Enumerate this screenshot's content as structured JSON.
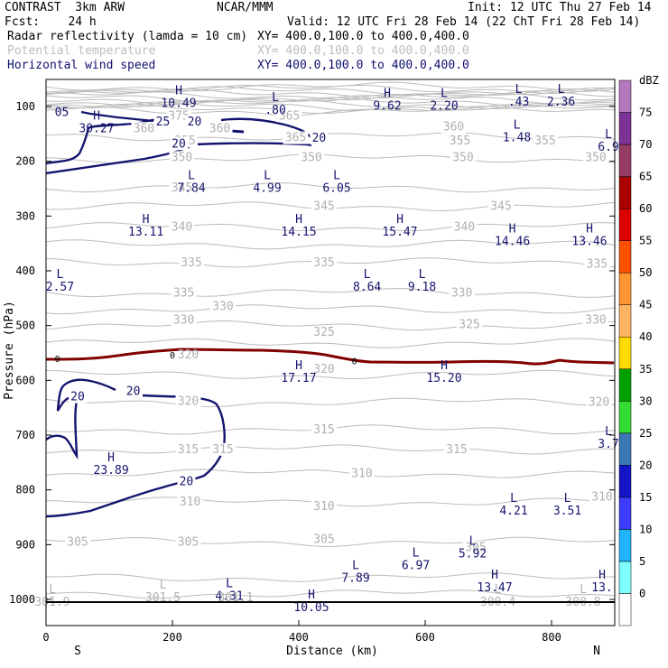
{
  "header": {
    "model": "CONTRAST  3km ARW",
    "center": "NCAR/MMM",
    "init": "Init: 12 UTC Thu 27 Feb 14",
    "fcst": "Fcst:    24 h",
    "valid": "Valid: 12 UTC Fri 28 Feb 14 (22 ChT Fri 28 Feb 14)",
    "fields": [
      {
        "name": "Radar reflectivity (lamda = 10 cm)",
        "xy": "XY= 400.0,100.0 to 400.0,400.0",
        "color": "#000000"
      },
      {
        "name": "Potential temperature",
        "xy": "XY= 400.0,100.0 to 400.0,400.0",
        "color": "#bdbdbd"
      },
      {
        "name": "Horizontal wind speed",
        "xy": "XY= 400.0,100.0 to 400.0,400.0",
        "color": "#101070"
      }
    ]
  },
  "chart_data": {
    "type": "cross-section contour",
    "xlabel": "Distance (km)",
    "ylabel": "Pressure (hPa)",
    "xlim": [
      0,
      900
    ],
    "ylim": [
      1000,
      60
    ],
    "xticks": [
      0,
      200,
      400,
      600,
      800
    ],
    "yticks": [
      100,
      200,
      300,
      400,
      500,
      600,
      700,
      800,
      900,
      1000
    ],
    "x_end_labels": {
      "left": "S",
      "right": "N"
    },
    "colorbar": {
      "units": "dBZ",
      "levels": [
        "0",
        "5",
        "10",
        "15",
        "20",
        "25",
        "30",
        "35",
        "40",
        "45",
        "50",
        "55",
        "60",
        "65",
        "70",
        "75"
      ],
      "colors": [
        "#ffffff",
        "#7fffff",
        "#1eb4ff",
        "#3c3cff",
        "#1414c8",
        "#3c78b4",
        "#32dc32",
        "#00a000",
        "#ffdc00",
        "#ffb464",
        "#ff9632",
        "#ff5000",
        "#dc0000",
        "#aa0000",
        "#963c64",
        "#7d3296",
        "#b478be"
      ]
    },
    "theta_labels": [
      {
        "x": 210,
        "p": 117,
        "v": "375"
      },
      {
        "x": 385,
        "p": 117,
        "v": "365"
      },
      {
        "x": 645,
        "p": 137,
        "v": "360"
      },
      {
        "x": 155,
        "p": 140,
        "v": "360"
      },
      {
        "x": 275,
        "p": 140,
        "v": "360"
      },
      {
        "x": 790,
        "p": 163,
        "v": "355"
      },
      {
        "x": 220,
        "p": 163,
        "v": "355"
      },
      {
        "x": 395,
        "p": 157,
        "v": "365"
      },
      {
        "x": 655,
        "p": 163,
        "v": "355"
      },
      {
        "x": 215,
        "p": 193,
        "v": "350"
      },
      {
        "x": 420,
        "p": 193,
        "v": "350"
      },
      {
        "x": 660,
        "p": 193,
        "v": "350"
      },
      {
        "x": 870,
        "p": 193,
        "v": "350"
      },
      {
        "x": 215,
        "p": 248,
        "v": "345"
      },
      {
        "x": 440,
        "p": 282,
        "v": "345"
      },
      {
        "x": 720,
        "p": 282,
        "v": "345"
      },
      {
        "x": 215,
        "p": 320,
        "v": "340"
      },
      {
        "x": 662,
        "p": 320,
        "v": "340"
      },
      {
        "x": 230,
        "p": 385,
        "v": "335"
      },
      {
        "x": 440,
        "p": 385,
        "v": "335"
      },
      {
        "x": 872,
        "p": 388,
        "v": "335"
      },
      {
        "x": 218,
        "p": 440,
        "v": "335"
      },
      {
        "x": 658,
        "p": 440,
        "v": "330"
      },
      {
        "x": 218,
        "p": 490,
        "v": "330"
      },
      {
        "x": 280,
        "p": 465,
        "v": "330"
      },
      {
        "x": 670,
        "p": 498,
        "v": "325"
      },
      {
        "x": 440,
        "p": 512,
        "v": "325"
      },
      {
        "x": 870,
        "p": 490,
        "v": "330"
      },
      {
        "x": 440,
        "p": 580,
        "v": "320"
      },
      {
        "x": 225,
        "p": 638,
        "v": "320"
      },
      {
        "x": 875,
        "p": 640,
        "v": "320"
      },
      {
        "x": 440,
        "p": 690,
        "v": "315"
      },
      {
        "x": 225,
        "p": 726,
        "v": "315"
      },
      {
        "x": 280,
        "p": 726,
        "v": "315"
      },
      {
        "x": 650,
        "p": 726,
        "v": "315"
      },
      {
        "x": 500,
        "p": 770,
        "v": "310"
      },
      {
        "x": 228,
        "p": 822,
        "v": "310"
      },
      {
        "x": 440,
        "p": 830,
        "v": "310"
      },
      {
        "x": 880,
        "p": 813,
        "v": "310"
      },
      {
        "x": 50,
        "p": 895,
        "v": "305"
      },
      {
        "x": 225,
        "p": 895,
        "v": "305"
      },
      {
        "x": 440,
        "p": 890,
        "v": "305"
      },
      {
        "x": 680,
        "p": 905,
        "v": "305"
      }
    ],
    "hl_markers": [
      {
        "x": 210,
        "p": 78,
        "t": "H",
        "v": "10.49"
      },
      {
        "x": 363,
        "p": 90,
        "t": "L",
        "v": ".80"
      },
      {
        "x": 540,
        "p": 83,
        "t": "H",
        "v": "9.62"
      },
      {
        "x": 630,
        "p": 83,
        "t": "L",
        "v": "2.20"
      },
      {
        "x": 748,
        "p": 75,
        "t": "L",
        "v": ".43"
      },
      {
        "x": 815,
        "p": 75,
        "t": "L",
        "v": "2.36"
      },
      {
        "x": 25,
        "p": 94,
        "t": "",
        "v": "05"
      },
      {
        "x": 80,
        "p": 124,
        "t": "H",
        "v": "30.27"
      },
      {
        "x": 745,
        "p": 140,
        "t": "L",
        "v": "1.48"
      },
      {
        "x": 890,
        "p": 158,
        "t": "L",
        "v": "6.9"
      },
      {
        "x": 230,
        "p": 233,
        "t": "L",
        "v": "7.84"
      },
      {
        "x": 350,
        "p": 233,
        "t": "L",
        "v": "4.99"
      },
      {
        "x": 460,
        "p": 233,
        "t": "L",
        "v": "6.05"
      },
      {
        "x": 158,
        "p": 313,
        "t": "H",
        "v": "13.11"
      },
      {
        "x": 400,
        "p": 313,
        "t": "H",
        "v": "14.15"
      },
      {
        "x": 560,
        "p": 313,
        "t": "H",
        "v": "15.47"
      },
      {
        "x": 738,
        "p": 330,
        "t": "H",
        "v": "14.46"
      },
      {
        "x": 860,
        "p": 330,
        "t": "H",
        "v": "13.46"
      },
      {
        "x": 22,
        "p": 413,
        "t": "L",
        "v": "2.57"
      },
      {
        "x": 508,
        "p": 413,
        "t": "L",
        "v": "8.64"
      },
      {
        "x": 595,
        "p": 413,
        "t": "L",
        "v": "9.18"
      },
      {
        "x": 400,
        "p": 580,
        "t": "H",
        "v": "17.17"
      },
      {
        "x": 630,
        "p": 580,
        "t": "H",
        "v": "15.20"
      },
      {
        "x": 890,
        "p": 700,
        "t": "L",
        "v": "3.7"
      },
      {
        "x": 103,
        "p": 748,
        "t": "H",
        "v": "23.89"
      },
      {
        "x": 740,
        "p": 822,
        "t": "L",
        "v": "4.21"
      },
      {
        "x": 825,
        "p": 822,
        "t": "L",
        "v": "3.51"
      },
      {
        "x": 675,
        "p": 900,
        "t": "L",
        "v": "5.92"
      },
      {
        "x": 585,
        "p": 922,
        "t": "L",
        "v": "6.97"
      },
      {
        "x": 490,
        "p": 945,
        "t": "L",
        "v": "7.89"
      },
      {
        "x": 710,
        "p": 962,
        "t": "H",
        "v": "13.47"
      },
      {
        "x": 880,
        "p": 962,
        "t": "H",
        "v": "13."
      },
      {
        "x": 290,
        "p": 978,
        "t": "L",
        "v": "4.31"
      },
      {
        "x": 420,
        "p": 998,
        "t": "H",
        "v": "10.05"
      }
    ],
    "hl_grey": [
      {
        "x": 10,
        "p": 1008,
        "t": "L",
        "v": "301.9"
      },
      {
        "x": 185,
        "p": 1000,
        "t": "L",
        "v": "301.5"
      },
      {
        "x": 300,
        "p": 1000,
        "t": "",
        "v": "301.1"
      },
      {
        "x": 715,
        "p": 1008,
        "t": "L",
        "v": "300.4"
      },
      {
        "x": 850,
        "p": 1008,
        "t": "L",
        "v": "300.8"
      }
    ],
    "wind_labels": [
      {
        "x": 185,
        "p": 128,
        "v": "25"
      },
      {
        "x": 235,
        "p": 128,
        "v": "20"
      },
      {
        "x": 432,
        "p": 158,
        "v": "20"
      },
      {
        "x": 210,
        "p": 168,
        "v": "20"
      },
      {
        "x": 50,
        "p": 630,
        "v": "20"
      },
      {
        "x": 138,
        "p": 620,
        "v": "20"
      },
      {
        "x": 222,
        "p": 785,
        "v": "20"
      }
    ],
    "zero_labels": [
      {
        "x": 18,
        "p": 560,
        "v": "0"
      },
      {
        "x": 200,
        "p": 553,
        "v": "0"
      },
      {
        "x": 488,
        "p": 564,
        "v": "0"
      }
    ],
    "zero_line_theta_label": {
      "x": 225,
      "p": 553,
      "v": "320"
    }
  }
}
